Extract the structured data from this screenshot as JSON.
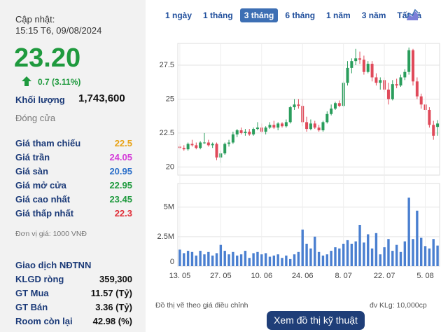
{
  "header": {
    "updated_label": "Cập nhật:",
    "updated_time": "15:15 T6, 09/08/2024"
  },
  "quote": {
    "price": "23.20",
    "change": "0.7 (3.11%)",
    "volume_label": "Khối lượng",
    "volume": "1,743,600",
    "status": "Đóng cửa"
  },
  "price_table": {
    "rows": [
      {
        "label": "Giá tham chiếu",
        "value": "22.5",
        "color": "#e8a317"
      },
      {
        "label": "Giá trần",
        "value": "24.05",
        "color": "#d43bd8"
      },
      {
        "label": "Giá sàn",
        "value": "20.95",
        "color": "#2b6fc9"
      },
      {
        "label": "Giá mở cửa",
        "value": "22.95",
        "color": "#1f9a3e"
      },
      {
        "label": "Giá cao nhất",
        "value": "23.45",
        "color": "#1f9a3e"
      },
      {
        "label": "Giá thấp nhất",
        "value": "22.3",
        "color": "#e0303a"
      }
    ]
  },
  "unit_note": "Đơn vị giá: 1000 VNĐ",
  "foreign": {
    "title": "Giao dịch NĐTNN",
    "rows": [
      {
        "label": "KLGD ròng",
        "value": "359,300"
      },
      {
        "label": "GT Mua",
        "value": "11.57 (Tỷ)"
      },
      {
        "label": "GT Bán",
        "value": "3.36 (Tỷ)"
      },
      {
        "label": "Room còn lại",
        "value": "42.98 (%)"
      }
    ]
  },
  "tabs": [
    "1 ngày",
    "1 tháng",
    "3 tháng",
    "6 tháng",
    "1 năm",
    "3 năm",
    "Tất cả"
  ],
  "active_tab": 2,
  "chart_data": [
    {
      "type": "candlestick",
      "up_color": "#2a9d5c",
      "down_color": "#e04a5a",
      "grid": true,
      "ylim": [
        19.4,
        29.1
      ],
      "yticks": [
        20,
        22.5,
        25,
        27.5
      ],
      "open": [
        21.5,
        21.4,
        21.3,
        21.7,
        21.6,
        21.4,
        21.8,
        21.8,
        21.6,
        21.7,
        20.7,
        21.0,
        21.7,
        21.8,
        22.4,
        22.7,
        22.5,
        22.6,
        22.4,
        22.8,
        22.9,
        22.6,
        22.9,
        23.1,
        22.9,
        23.2,
        23.0,
        23.3,
        24.4,
        24.6,
        24.5,
        23.3,
        22.8,
        23.2,
        22.9,
        22.7,
        23.3,
        23.9,
        24.3,
        24.7,
        24.5,
        26.2,
        27.3,
        27.8,
        28.0,
        27.9,
        27.0,
        27.6,
        26.6,
        26.2,
        26.4,
        25.7,
        25.0,
        26.1,
        26.0,
        26.6,
        27.0,
        28.6,
        26.3,
        25.2,
        24.6,
        24.2,
        23.1,
        22.95
      ],
      "high": [
        21.7,
        21.6,
        21.8,
        22.0,
        21.8,
        21.9,
        22.5,
        22.0,
        21.8,
        21.8,
        21.2,
        21.8,
        22.0,
        22.6,
        22.8,
        22.9,
        22.8,
        22.8,
        22.9,
        23.3,
        23.2,
        23.0,
        23.3,
        23.4,
        23.3,
        23.3,
        23.5,
        24.5,
        25.0,
        25.0,
        25.0,
        23.7,
        23.5,
        23.4,
        23.1,
        23.4,
        24.1,
        24.6,
        24.8,
        24.9,
        26.3,
        27.8,
        28.0,
        28.7,
        28.5,
        28.2,
        27.8,
        27.8,
        26.9,
        26.6,
        26.6,
        26.2,
        26.4,
        26.5,
        26.8,
        27.2,
        28.8,
        28.7,
        26.6,
        25.4,
        25.2,
        24.4,
        23.4,
        23.45
      ],
      "low": [
        21.3,
        21.2,
        21.2,
        21.5,
        21.3,
        21.3,
        21.7,
        21.5,
        21.4,
        20.5,
        20.3,
        20.9,
        21.5,
        21.7,
        22.2,
        22.4,
        22.3,
        22.3,
        22.3,
        22.7,
        22.5,
        22.4,
        22.8,
        22.8,
        22.7,
        22.9,
        22.9,
        23.2,
        24.2,
        24.3,
        23.0,
        22.6,
        22.7,
        22.8,
        22.6,
        22.6,
        23.2,
        23.8,
        24.2,
        24.4,
        24.4,
        26.0,
        26.9,
        27.5,
        27.6,
        26.8,
        26.9,
        26.3,
        26.0,
        25.7,
        25.5,
        24.6,
        24.9,
        25.8,
        25.9,
        26.4,
        26.8,
        26.0,
        25.0,
        24.3,
        24.0,
        22.9,
        22.0,
        22.3
      ],
      "close": [
        21.4,
        21.3,
        21.7,
        21.6,
        21.4,
        21.8,
        21.8,
        21.6,
        21.7,
        20.7,
        21.0,
        21.7,
        21.8,
        22.4,
        22.7,
        22.5,
        22.6,
        22.4,
        22.8,
        22.9,
        22.6,
        22.9,
        23.1,
        22.9,
        23.2,
        23.0,
        23.3,
        24.4,
        24.6,
        24.5,
        23.3,
        22.8,
        23.2,
        22.9,
        22.7,
        23.3,
        23.9,
        24.3,
        24.7,
        24.5,
        26.2,
        27.3,
        27.8,
        28.0,
        27.9,
        27.0,
        27.6,
        26.6,
        26.2,
        26.4,
        25.7,
        25.0,
        26.1,
        26.0,
        26.6,
        27.0,
        28.6,
        26.3,
        25.2,
        24.6,
        24.2,
        23.1,
        22.3,
        23.2
      ]
    },
    {
      "type": "bar",
      "color": "#4a7fd0",
      "grid": true,
      "ylim": [
        0,
        7000000
      ],
      "yticks": [
        0,
        {
          "value": 2500000,
          "label": "2.5M"
        },
        {
          "value": 5000000,
          "label": "5M"
        }
      ],
      "categories": [
        "13. 05",
        null,
        null,
        null,
        null,
        null,
        null,
        null,
        null,
        null,
        "27. 05",
        null,
        null,
        null,
        null,
        null,
        null,
        null,
        null,
        null,
        "10. 06",
        null,
        null,
        null,
        null,
        null,
        null,
        null,
        null,
        null,
        "24. 06",
        null,
        null,
        null,
        null,
        null,
        null,
        null,
        null,
        null,
        "8. 07",
        null,
        null,
        null,
        null,
        null,
        null,
        null,
        null,
        null,
        "22. 07",
        null,
        null,
        null,
        null,
        null,
        null,
        null,
        null,
        null,
        "5. 08",
        null,
        null,
        null
      ],
      "values": [
        1400000,
        1100000,
        1300000,
        1200000,
        900000,
        1300000,
        1000000,
        1200000,
        900000,
        1100000,
        1800000,
        1300000,
        1000000,
        1200000,
        900000,
        1000000,
        1300000,
        700000,
        1100000,
        1200000,
        1000000,
        1100000,
        800000,
        900000,
        1000000,
        700000,
        900000,
        600000,
        1000000,
        1200000,
        3100000,
        1900000,
        1500000,
        2500000,
        1200000,
        900000,
        1000000,
        1300000,
        1600000,
        1500000,
        1900000,
        2200000,
        1900000,
        2100000,
        3500000,
        2000000,
        2700000,
        1500000,
        2800000,
        1000000,
        1600000,
        2300000,
        1300000,
        1800000,
        1200000,
        2100000,
        5800000,
        2300000,
        4700000,
        2400000,
        1700000,
        1500000,
        2300000,
        1743600
      ]
    }
  ],
  "footnote_left": "Đồ thị vẽ theo giá điều chỉnh",
  "footnote_right": "đv KLg: 10,000cp",
  "button": "Xem đồ thị kỹ thuật"
}
